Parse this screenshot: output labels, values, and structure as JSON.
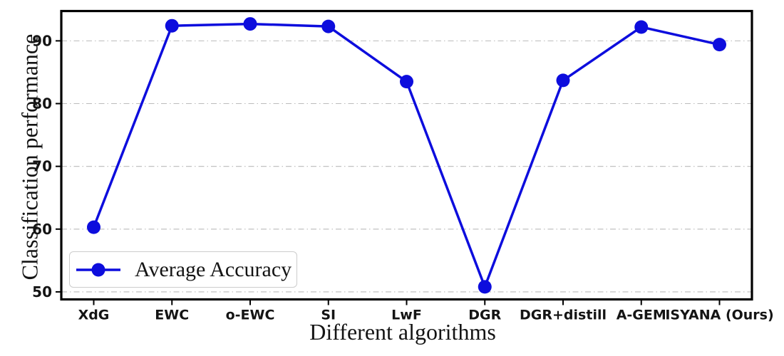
{
  "figure": {
    "background": "#ffffff"
  },
  "chart_data": {
    "type": "line",
    "title": "",
    "xlabel": "Different algorithms",
    "ylabel": "Classification performance",
    "categories": [
      "XdG",
      "EWC",
      "o-EWC",
      "SI",
      "LwF",
      "DGR",
      "DGR+distill",
      "A-GEM",
      "ISYANA (Ours)"
    ],
    "series": [
      {
        "name": "Average Accuracy",
        "values": [
          60.3,
          92.4,
          92.7,
          92.3,
          83.5,
          50.8,
          83.7,
          92.2,
          89.4
        ],
        "color": "#0d0ddd",
        "marker": "circle"
      }
    ],
    "ylim": [
      48.8,
      94.75
    ],
    "yticks": [
      50,
      60,
      70,
      80,
      90
    ],
    "grid": "horizontal",
    "grid_style": "dash-dot",
    "legend_position": "lower left"
  },
  "colors": {
    "line": "#0d0ddd",
    "grid": "#bbbbbb",
    "axis": "#000000",
    "text": "#141414",
    "legend_border": "#cccccc"
  }
}
